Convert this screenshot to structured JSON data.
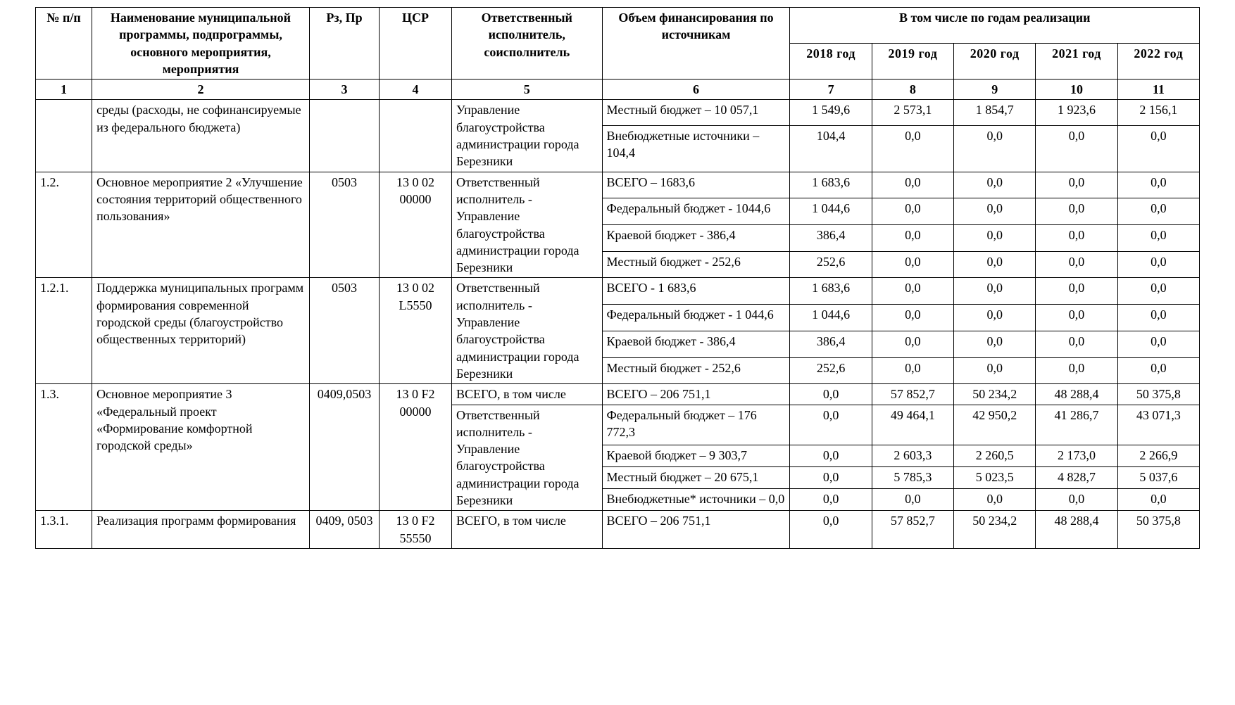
{
  "header": {
    "col1": "№ п/п",
    "col2": "Наименование муниципальной программы, подпрограммы, основного мероприятия, мероприятия",
    "col3": "Рз, Пр",
    "col4": "ЦСР",
    "col5": "Ответственный исполнитель, соисполнитель",
    "col6": "Объем финансирования по источникам",
    "col_years_group": "В том числе по годам реализации",
    "y2018": "2018 год",
    "y2019": "2019 год",
    "y2020": "2020 год",
    "y2021": "2021 год",
    "y2022": "2022 год",
    "n1": "1",
    "n2": "2",
    "n3": "3",
    "n4": "4",
    "n5": "5",
    "n6": "6",
    "n7": "7",
    "n8": "8",
    "n9": "9",
    "n10": "10",
    "n11": "11"
  },
  "rows": {
    "r0": {
      "name": "среды (расходы, не софинансируемые из федерального бюджета)",
      "resp": "Управление благоустройства администрации города Березники",
      "line1": {
        "vol": "Местный бюджет – 10 057,1",
        "y18": "1 549,6",
        "y19": "2 573,1",
        "y20": "1 854,7",
        "y21": "1 923,6",
        "y22": "2 156,1"
      },
      "line2": {
        "vol": "Внебюджетные источники – 104,4",
        "y18": "104,4",
        "y19": "0,0",
        "y20": "0,0",
        "y21": "0,0",
        "y22": "0,0"
      }
    },
    "r12": {
      "num": "1.2.",
      "name": "Основное мероприятие 2 «Улучшение состояния территорий общественного пользования»",
      "rz": "0503",
      "csr": "13 0 02 00000",
      "resp": "Ответственный исполнитель - Управление благоустройства администрации города Березники",
      "line1": {
        "vol": "ВСЕГО – 1683,6",
        "y18": "1 683,6",
        "y19": "0,0",
        "y20": "0,0",
        "y21": "0,0",
        "y22": "0,0"
      },
      "line2": {
        "vol": "Федеральный бюджет -  1044,6",
        "y18": "1 044,6",
        "y19": "0,0",
        "y20": "0,0",
        "y21": "0,0",
        "y22": "0,0"
      },
      "line3": {
        "vol": "Краевой бюджет -  386,4",
        "y18": "386,4",
        "y19": "0,0",
        "y20": "0,0",
        "y21": "0,0",
        "y22": "0,0"
      },
      "line4": {
        "vol": "Местный бюджет -  252,6",
        "y18": "252,6",
        "y19": "0,0",
        "y20": "0,0",
        "y21": "0,0",
        "y22": "0,0"
      }
    },
    "r121": {
      "num": "1.2.1.",
      "name": "Поддержка муниципальных программ формирования современной городской среды (благоустройство общественных территорий)",
      "rz": "0503",
      "csr": "13 0 02 L5550",
      "resp": "Ответственный исполнитель - Управление благоустройства администрации города Березники",
      "line1": {
        "vol": "ВСЕГО - 1 683,6",
        "y18": "1 683,6",
        "y19": "0,0",
        "y20": "0,0",
        "y21": "0,0",
        "y22": "0,0"
      },
      "line2": {
        "vol": "Федеральный бюджет -  1 044,6",
        "y18": "1 044,6",
        "y19": "0,0",
        "y20": "0,0",
        "y21": "0,0",
        "y22": "0,0"
      },
      "line3": {
        "vol": "Краевой бюджет -  386,4",
        "y18": "386,4",
        "y19": "0,0",
        "y20": "0,0",
        "y21": "0,0",
        "y22": "0,0"
      },
      "line4": {
        "vol": "Местный бюджет - 252,6",
        "y18": "252,6",
        "y19": "0,0",
        "y20": "0,0",
        "y21": "0,0",
        "y22": "0,0"
      }
    },
    "r13": {
      "num": "1.3.",
      "name": "Основное мероприятие 3 «Федеральный проект «Формирование комфортной городской среды»",
      "rz": "0409,0503",
      "csr": "13 0 F2 00000",
      "resp1": "ВСЕГО, в том числе",
      "resp2": "Ответственный исполнитель - Управление благоустройства администрации города Березники",
      "line1": {
        "vol": "ВСЕГО – 206 751,1",
        "y18": "0,0",
        "y19": "57 852,7",
        "y20": "50 234,2",
        "y21": "48 288,4",
        "y22": "50 375,8"
      },
      "line2": {
        "vol": "Федеральный бюджет – 176 772,3",
        "y18": "0,0",
        "y19": "49 464,1",
        "y20": "42 950,2",
        "y21": "41 286,7",
        "y22": "43 071,3"
      },
      "line3": {
        "vol": "Краевой бюджет – 9 303,7",
        "y18": "0,0",
        "y19": "2 603,3",
        "y20": "2 260,5",
        "y21": "2 173,0",
        "y22": "2 266,9"
      },
      "line4": {
        "vol": "Местный бюджет – 20 675,1",
        "y18": "0,0",
        "y19": "5 785,3",
        "y20": "5 023,5",
        "y21": "4 828,7",
        "y22": "5 037,6"
      },
      "line5": {
        "vol": "Внебюджетные* источники – 0,0",
        "y18": "0,0",
        "y19": "0,0",
        "y20": "0,0",
        "y21": "0,0",
        "y22": "0,0"
      }
    },
    "r131": {
      "num": "1.3.1.",
      "name": "Реализация программ формирования",
      "rz": "0409, 0503",
      "csr": "13 0 F2 55550",
      "resp": "ВСЕГО, в том числе",
      "line1": {
        "vol": "ВСЕГО – 206 751,1",
        "y18": "0,0",
        "y19": "57 852,7",
        "y20": "50 234,2",
        "y21": "48 288,4",
        "y22": "50 375,8"
      }
    }
  }
}
